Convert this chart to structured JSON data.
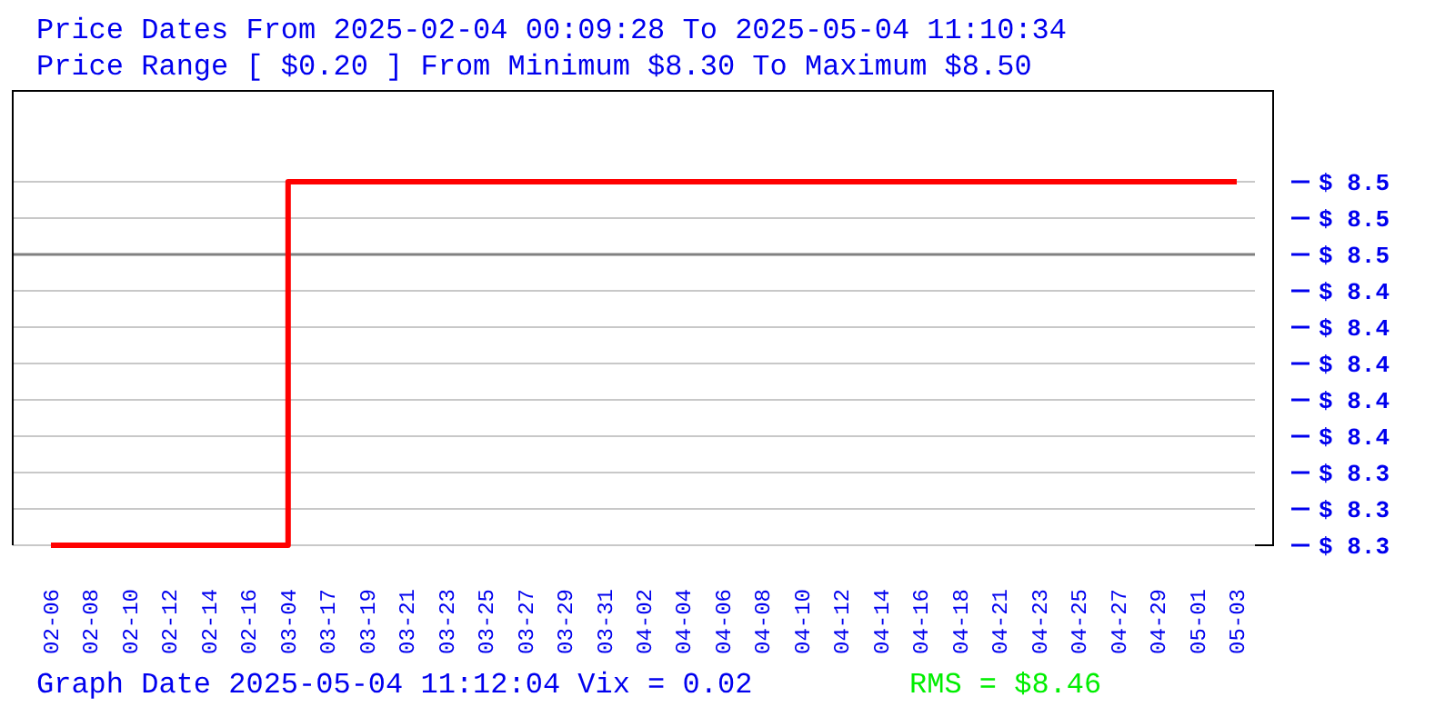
{
  "chart_data": {
    "type": "step",
    "title": "Price Dates From 2025-02-04 00:09:28 To 2025-05-04 11:10:34",
    "subtitle": "Price Range [ $0.20 ] From Minimum $8.30 To Maximum $8.50",
    "categories": [
      "02-06",
      "02-08",
      "02-10",
      "02-12",
      "02-14",
      "02-16",
      "03-04",
      "03-17",
      "03-19",
      "03-21",
      "03-23",
      "03-25",
      "03-27",
      "03-29",
      "03-31",
      "04-02",
      "04-04",
      "04-06",
      "04-08",
      "04-10",
      "04-12",
      "04-14",
      "04-16",
      "04-18",
      "04-21",
      "04-23",
      "04-25",
      "04-27",
      "04-29",
      "05-01",
      "05-03"
    ],
    "series": [
      {
        "color": "#ff0000",
        "values": [
          8.3,
          8.3,
          8.3,
          8.3,
          8.3,
          8.3,
          8.5,
          8.5,
          8.5,
          8.5,
          8.5,
          8.5,
          8.5,
          8.5,
          8.5,
          8.5,
          8.5,
          8.5,
          8.5,
          8.5,
          8.5,
          8.5,
          8.5,
          8.5,
          8.5,
          8.5,
          8.5,
          8.5,
          8.5,
          8.5,
          8.5
        ]
      }
    ],
    "ylim": [
      8.3,
      8.55
    ],
    "yticks": [
      {
        "value": 8.3,
        "label": "$ 8.3"
      },
      {
        "value": 8.32,
        "label": "$ 8.3"
      },
      {
        "value": 8.34,
        "label": "$ 8.3"
      },
      {
        "value": 8.36,
        "label": "$ 8.4"
      },
      {
        "value": 8.38,
        "label": "$ 8.4"
      },
      {
        "value": 8.4,
        "label": "$ 8.4"
      },
      {
        "value": 8.42,
        "label": "$ 8.4"
      },
      {
        "value": 8.44,
        "label": "$ 8.4"
      },
      {
        "value": 8.46,
        "label": "$ 8.5"
      },
      {
        "value": 8.48,
        "label": "$ 8.5"
      },
      {
        "value": 8.5,
        "label": "$ 8.5"
      }
    ],
    "ref_lines": [
      {
        "axis": "y",
        "value": 8.46,
        "color": "#808080"
      }
    ],
    "grid": "y",
    "annotations": [
      "Graph Date 2025-05-04 11:12:04 Vix = 0.02",
      "RMS = $8.46"
    ]
  }
}
